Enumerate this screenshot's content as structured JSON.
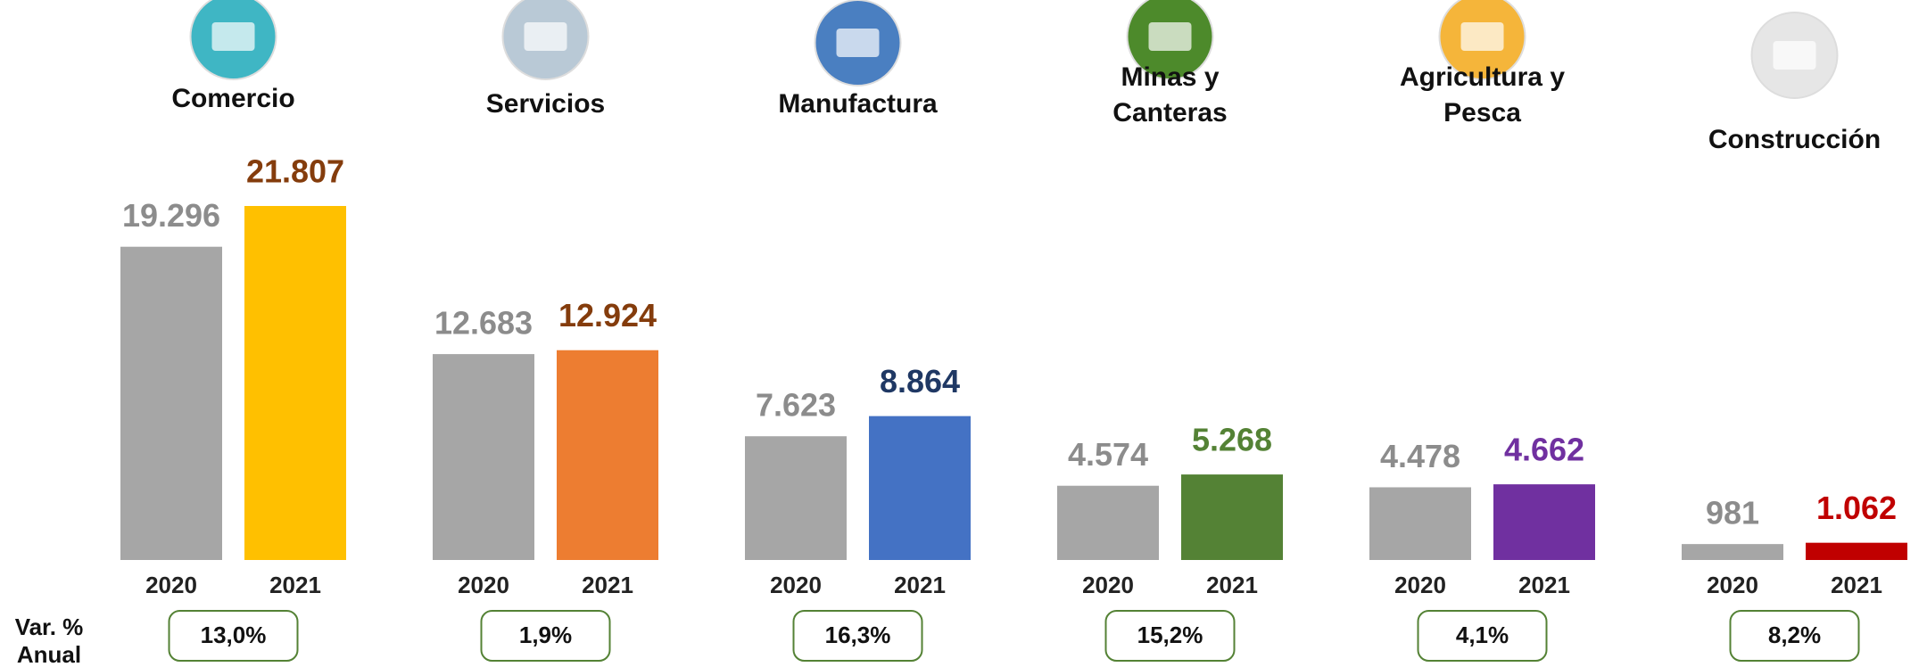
{
  "chart_data": {
    "type": "bar",
    "categories": [
      "Comercio",
      "Servicios",
      "Manufactura",
      "Minas y Canteras",
      "Agricultura y Pesca",
      "Construcción"
    ],
    "series": [
      {
        "name": "2020",
        "color": "#a6a6a6",
        "label_color": "#8c8c8c",
        "values": [
          19296,
          12683,
          7623,
          4574,
          4478,
          981
        ],
        "value_labels": [
          "19.296",
          "12.683",
          "7.623",
          "4.574",
          "4.478",
          "981"
        ]
      },
      {
        "name": "2021",
        "colors": [
          "#ffc000",
          "#ed7d31",
          "#4472c4",
          "#548235",
          "#7030a0",
          "#c00000"
        ],
        "label_colors": [
          "#843c0c",
          "#843c0c",
          "#1f3864",
          "#548235",
          "#7030a0",
          "#c00000"
        ],
        "values": [
          21807,
          12924,
          8864,
          5268,
          4662,
          1062
        ],
        "value_labels": [
          "21.807",
          "12.924",
          "8.864",
          "5.268",
          "4.662",
          "1.062"
        ]
      }
    ],
    "variation": {
      "label": [
        "Var. %",
        "Anual"
      ],
      "values": [
        13.0,
        1.9,
        16.3,
        15.2,
        4.1,
        8.2
      ],
      "value_labels": [
        "13,0%",
        "1,9%",
        "16,3%",
        "15,2%",
        "4,1%",
        "8,2%"
      ]
    }
  }
}
